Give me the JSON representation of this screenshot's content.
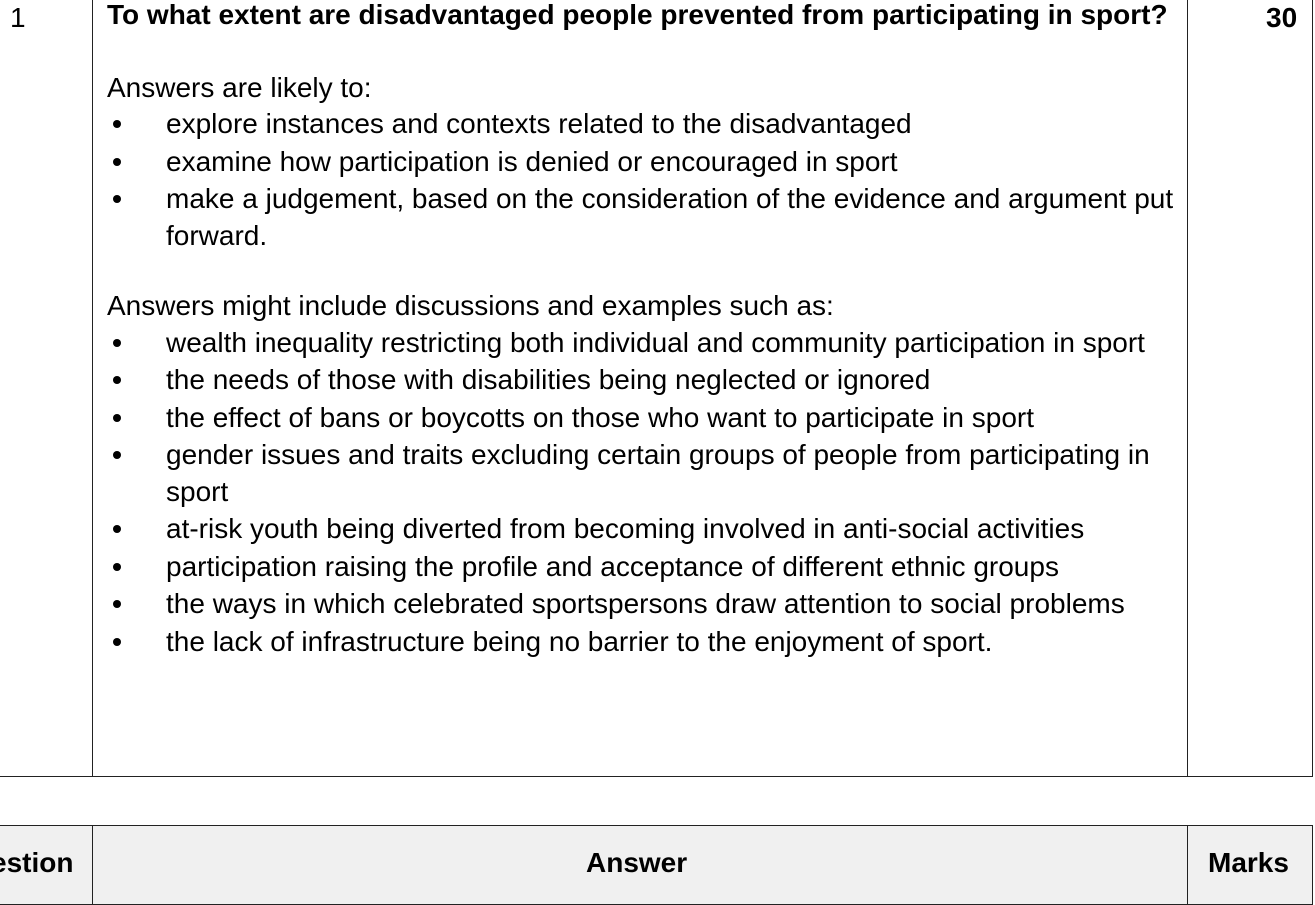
{
  "row": {
    "question_number": "1",
    "marks": "30",
    "question": "To what extent are disadvantaged people prevented from participating in sport?",
    "intro_likely": "Answers are likely to:",
    "likely_points": [
      "explore instances and contexts related to the disadvantaged",
      "examine how participation is denied or encouraged in sport",
      "make a judgement, based on the consideration of the evidence and argument put forward."
    ],
    "intro_include": "Answers might include discussions and examples such as:",
    "include_points": [
      "wealth inequality restricting both individual and community participation in sport",
      "the needs of those with disabilities being neglected or ignored",
      "the effect of bans or boycotts on those who want to participate in sport",
      "gender issues and traits excluding certain groups of people from participating in sport",
      "at-risk youth being diverted from becoming involved in anti-social activities",
      "participation raising the profile and acceptance of different ethnic groups",
      "the ways in which celebrated sportspersons draw attention to social problems",
      "the lack of infrastructure being no barrier to the enjoyment of sport."
    ]
  },
  "header": {
    "question_label": "estion",
    "answer_label": "Answer",
    "marks_label": "Marks"
  }
}
